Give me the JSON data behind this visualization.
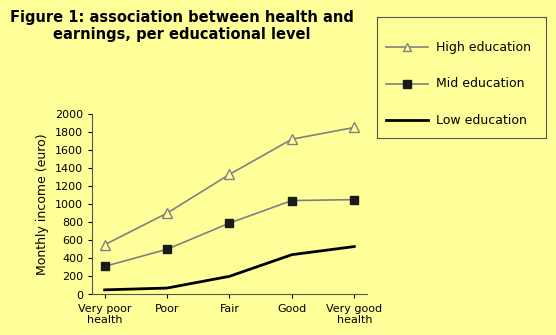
{
  "title_line1": "Figure 1: association between health and",
  "title_line2": "earnings, per educational level",
  "xlabel_categories": [
    "Very poor\nhealth",
    "Poor",
    "Fair",
    "Good",
    "Very good\nhealth"
  ],
  "ylabel": "Monthly income (euro)",
  "ylim": [
    0,
    2000
  ],
  "yticks": [
    0,
    200,
    400,
    600,
    800,
    1000,
    1200,
    1400,
    1600,
    1800,
    2000
  ],
  "series": [
    {
      "label": "High education",
      "values": [
        550,
        900,
        1330,
        1720,
        1850
      ],
      "color": "#808080",
      "marker": "^",
      "marker_facecolor": "#ffff99",
      "marker_edgecolor": "#808080",
      "markersize": 7,
      "linestyle": "-",
      "linewidth": 1.2
    },
    {
      "label": "Mid education",
      "values": [
        310,
        500,
        790,
        1040,
        1050
      ],
      "color": "#808080",
      "marker": "s",
      "marker_facecolor": "#1a1a1a",
      "marker_edgecolor": "#1a1a1a",
      "markersize": 6,
      "linestyle": "-",
      "linewidth": 1.2
    },
    {
      "label": "Low education",
      "values": [
        50,
        70,
        200,
        440,
        530
      ],
      "color": "#000000",
      "marker": null,
      "marker_facecolor": null,
      "marker_edgecolor": null,
      "markersize": 0,
      "linestyle": "-",
      "linewidth": 2.0
    }
  ],
  "background_color": "#ffff99",
  "plot_bg_color": "#ffff99",
  "title_fontsize": 10.5,
  "axis_label_fontsize": 9,
  "tick_fontsize": 8,
  "legend_fontsize": 9
}
